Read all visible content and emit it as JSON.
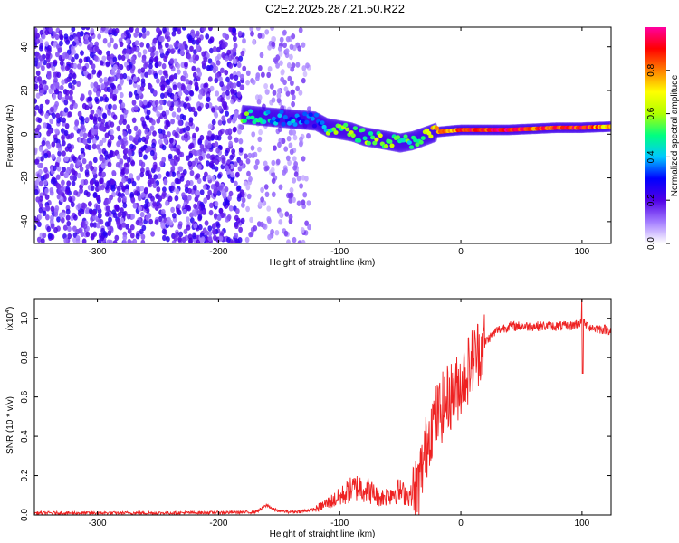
{
  "figure_title": "C2E2.2025.287.21.50.R22",
  "chart_data": [
    {
      "type": "heatmap",
      "title": "C2E2.2025.287.21.50.R22",
      "xlabel": "Height of straight line (km)",
      "ylabel": "Frequency (Hz)",
      "xlim": [
        -352,
        124
      ],
      "ylim": [
        -50,
        49
      ],
      "xticks": [
        -300,
        -200,
        -100,
        0,
        100
      ],
      "yticks": [
        -40,
        -20,
        0,
        20,
        40
      ],
      "colorbar": {
        "label": "Normalized spectral amplitude",
        "range": [
          0,
          1
        ],
        "ticks": [
          "0.0",
          "0.2",
          "0.4",
          "0.6",
          "0.8"
        ],
        "colors": [
          "#ffffff",
          "#a37cff",
          "#5000e6",
          "#0000ff",
          "#00c8ff",
          "#00ff80",
          "#b0ff00",
          "#ffff00",
          "#ff8000",
          "#ff0000",
          "#ff00a0"
        ]
      },
      "ridge": {
        "x": [
          -180,
          -160,
          -140,
          -120,
          -110,
          -100,
          -90,
          -80,
          -70,
          -60,
          -50,
          -40,
          -30,
          -20,
          -10,
          0,
          20,
          40,
          60,
          80,
          100,
          124
        ],
        "freq": [
          9,
          8,
          7,
          6,
          3,
          2,
          1,
          -1,
          -2,
          -3,
          -4,
          -3,
          -1,
          1,
          1.5,
          2,
          2,
          2,
          2.5,
          3,
          3,
          3.5
        ],
        "amplitude": [
          0.5,
          0.4,
          0.35,
          0.3,
          0.5,
          0.55,
          0.55,
          0.55,
          0.6,
          0.6,
          0.5,
          0.5,
          0.6,
          0.75,
          0.8,
          0.85,
          0.9,
          0.9,
          0.85,
          0.85,
          0.9,
          0.7
        ]
      },
      "noise_region": {
        "x": [
          -352,
          -125
        ],
        "freq": [
          -50,
          49
        ]
      }
    },
    {
      "type": "line",
      "title": "",
      "xlabel": "Height of straight line (km)",
      "ylabel": "SNR (10 * v/v)",
      "y_scale_label": "(x10",
      "y_scale_exponent": "4",
      "y_scale_close": ")",
      "xlim": [
        -352,
        124
      ],
      "ylim": [
        0,
        1.1
      ],
      "xticks": [
        -300,
        -200,
        -100,
        0,
        100
      ],
      "yticks": [
        "0.0",
        "0.2",
        "0.4",
        "0.6",
        "0.8",
        "1.0"
      ],
      "series": [
        {
          "name": "SNR",
          "color": "#ee2222",
          "x": [
            -352,
            -300,
            -250,
            -200,
            -170,
            -165,
            -160,
            -155,
            -150,
            -140,
            -130,
            -120,
            -110,
            -100,
            -95,
            -90,
            -85,
            -80,
            -75,
            -70,
            -65,
            -60,
            -55,
            -50,
            -45,
            -40,
            -35,
            -30,
            -25,
            -20,
            -15,
            -10,
            -5,
            0,
            5,
            10,
            15,
            20,
            25,
            30,
            40,
            50,
            60,
            70,
            80,
            90,
            95,
            100,
            105,
            110,
            124
          ],
          "y": [
            0.01,
            0.01,
            0.01,
            0.012,
            0.015,
            0.03,
            0.05,
            0.03,
            0.02,
            0.015,
            0.02,
            0.03,
            0.06,
            0.09,
            0.11,
            0.13,
            0.14,
            0.14,
            0.12,
            0.1,
            0.09,
            0.1,
            0.12,
            0.12,
            0.1,
            0.1,
            0.15,
            0.3,
            0.45,
            0.5,
            0.55,
            0.6,
            0.62,
            0.68,
            0.73,
            0.79,
            0.84,
            0.88,
            0.91,
            0.94,
            0.96,
            0.96,
            0.96,
            0.96,
            0.96,
            0.96,
            0.97,
            0.98,
            0.96,
            0.95,
            0.94
          ]
        }
      ]
    }
  ]
}
